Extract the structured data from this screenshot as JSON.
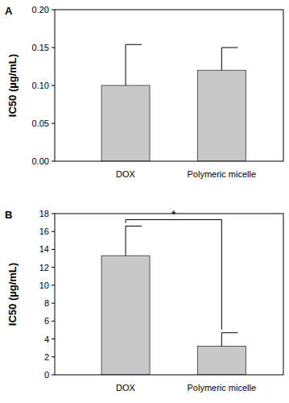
{
  "chart_data": [
    {
      "type": "bar",
      "title": "A",
      "categories": [
        "DOX",
        "Polymeric micelle"
      ],
      "values": [
        0.1,
        0.12
      ],
      "errors": [
        0.054,
        0.03
      ],
      "color": "#c8c8c8",
      "y_label": "IC50 (µg/mL)",
      "ylim": [
        0,
        0.2
      ],
      "yticks": [
        {
          "value": 0,
          "label": "0.00"
        },
        {
          "value": 0.05,
          "label": "0.05"
        },
        {
          "value": 0.1,
          "label": "0.10"
        },
        {
          "value": 0.15,
          "label": "0.15"
        },
        {
          "value": 0.2,
          "label": "0.20"
        }
      ]
    },
    {
      "type": "bar",
      "title": "B",
      "categories": [
        "DOX",
        "Polymeric micelle"
      ],
      "values": [
        13.3,
        3.2
      ],
      "errors": [
        3.3,
        1.5
      ],
      "color": "#c8c8c8",
      "y_label": "IC50 (µg/mL)",
      "ylim": [
        0,
        18
      ],
      "yticks": [
        0,
        2,
        4,
        6,
        8,
        10,
        12,
        14,
        16,
        18
      ],
      "annotations": [
        {
          "text": "*",
          "between": [
            0,
            1
          ]
        }
      ]
    }
  ]
}
